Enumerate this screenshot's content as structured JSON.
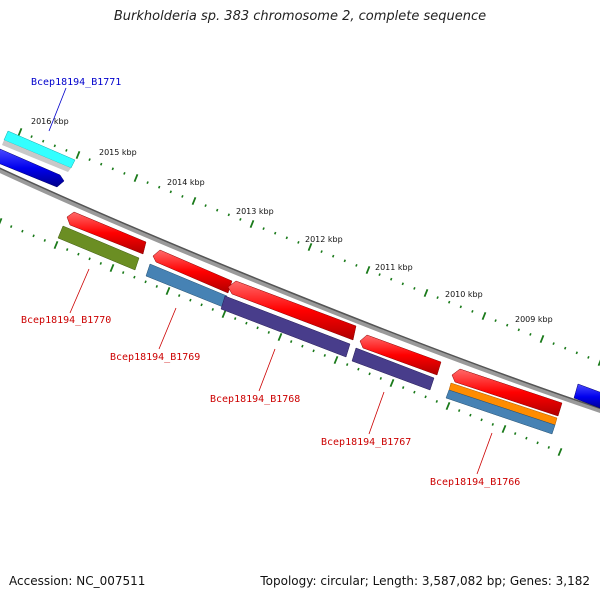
{
  "title": "Burkholderia sp. 383 chromosome 2, complete sequence",
  "footer": {
    "accession": "Accession: NC_007511",
    "summary": "Topology: circular; Length: 3,587,082 bp; Genes: 3,182"
  },
  "ticks": [
    "2016 kbp",
    "2015 kbp",
    "2014 kbp",
    "2013 kbp",
    "2012 kbp",
    "2011 kbp",
    "2010 kbp",
    "2009 kbp"
  ],
  "genes": [
    {
      "label": "Bcep18194_B1771",
      "strand": "forward",
      "color": "#0000cc"
    },
    {
      "label": "Bcep18194_B1770",
      "strand": "reverse",
      "color": "#cc0000"
    },
    {
      "label": "Bcep18194_B1769",
      "strand": "reverse",
      "color": "#cc0000"
    },
    {
      "label": "Bcep18194_B1768",
      "strand": "reverse",
      "color": "#cc0000"
    },
    {
      "label": "Bcep18194_B1767",
      "strand": "reverse",
      "color": "#cc0000"
    },
    {
      "label": "Bcep18194_B1766",
      "strand": "reverse",
      "color": "#cc0000"
    }
  ],
  "colors": {
    "forward_feature": "#0000ff",
    "reverse_feature": "#ff0000",
    "backbone": "#888888",
    "tick_marks": "#1a7a1a",
    "cog_cyan": "#33ffff",
    "cog_olive": "#6b8e23",
    "cog_steelblue": "#4682b4",
    "cog_slateblue": "#483d8b",
    "cog_orange": "#ff8c00"
  }
}
